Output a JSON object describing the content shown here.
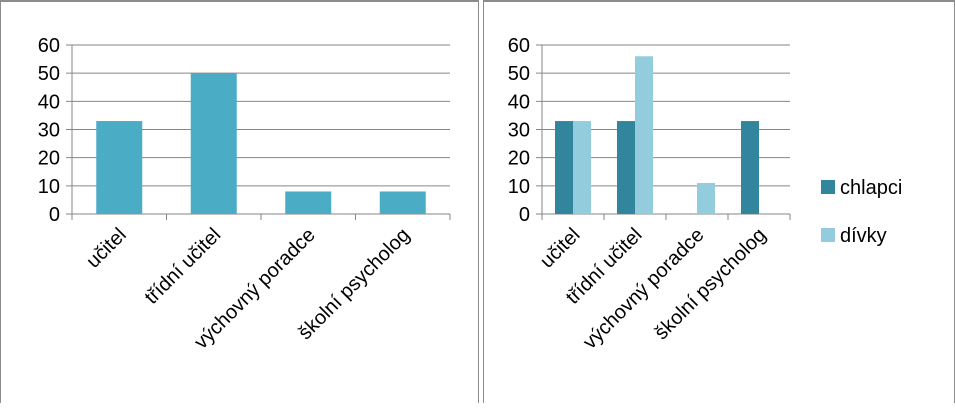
{
  "colors": {
    "single_bar": "#4bacc6",
    "chlapci": "#31859c",
    "divky": "#93cddd",
    "grid": "#868686"
  },
  "chart_data": [
    {
      "type": "bar",
      "title": "",
      "xlabel": "",
      "ylabel": "",
      "categories": [
        "učitel",
        "třídní učitel",
        "výchovný poradce",
        "školní psycholog"
      ],
      "values": [
        33,
        50,
        8,
        8
      ],
      "ylim": [
        0,
        60
      ],
      "yticks": [
        0,
        10,
        20,
        30,
        40,
        50,
        60
      ],
      "grid": true,
      "legend": "none"
    },
    {
      "type": "bar",
      "title": "",
      "xlabel": "",
      "ylabel": "",
      "categories": [
        "učitel",
        "třídní učitel",
        "výchovný poradce",
        "školní psycholog"
      ],
      "series": [
        {
          "name": "chlapci",
          "values": [
            33,
            33,
            0,
            33
          ]
        },
        {
          "name": "dívky",
          "values": [
            33,
            56,
            11,
            0
          ]
        }
      ],
      "ylim": [
        0,
        60
      ],
      "yticks": [
        0,
        10,
        20,
        30,
        40,
        50,
        60
      ],
      "grid": true,
      "legend": "right"
    }
  ]
}
